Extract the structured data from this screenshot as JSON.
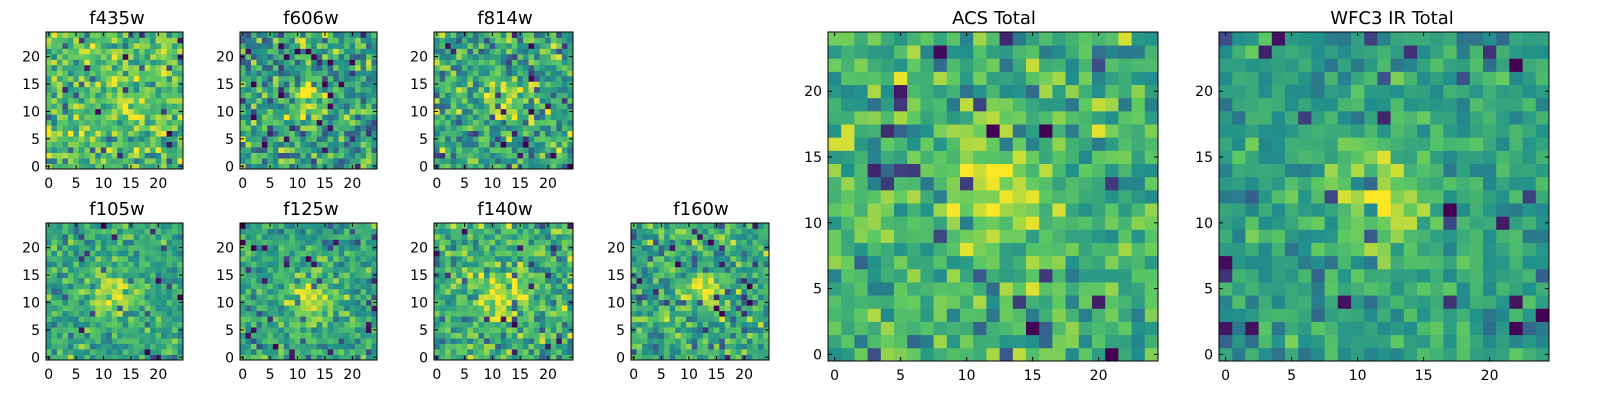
{
  "figure": {
    "colormap": "viridis",
    "colormap_stops": [
      "#440154",
      "#3b528b",
      "#21918c",
      "#5ec962",
      "#fde725"
    ]
  },
  "chart_data": [
    {
      "type": "heatmap",
      "title": "f435w",
      "grid_size": 25,
      "xlim": [
        -0.5,
        24.5
      ],
      "ylim": [
        -0.5,
        24.5
      ],
      "xticks": [
        0,
        5,
        10,
        15,
        20
      ],
      "yticks": [
        0,
        5,
        10,
        15,
        20
      ],
      "source_center": [
        12,
        12
      ],
      "source_peak": 0.05,
      "source_width": 3.0,
      "noise": 0.2,
      "background": 0.72,
      "seed": 435
    },
    {
      "type": "heatmap",
      "title": "f606w",
      "grid_size": 25,
      "xlim": [
        -0.5,
        24.5
      ],
      "ylim": [
        -0.5,
        24.5
      ],
      "xticks": [
        0,
        5,
        10,
        15,
        20
      ],
      "yticks": [
        0,
        5,
        10,
        15,
        20
      ],
      "source_center": [
        12,
        12
      ],
      "source_peak": 0.35,
      "source_width": 2.0,
      "noise": 0.24,
      "background": 0.58,
      "seed": 606
    },
    {
      "type": "heatmap",
      "title": "f814w",
      "grid_size": 25,
      "xlim": [
        -0.5,
        24.5
      ],
      "ylim": [
        -0.5,
        24.5
      ],
      "xticks": [
        0,
        5,
        10,
        15,
        20
      ],
      "yticks": [
        0,
        5,
        10,
        15,
        20
      ],
      "source_center": [
        12,
        12
      ],
      "source_peak": 0.3,
      "source_width": 2.2,
      "noise": 0.24,
      "background": 0.6,
      "seed": 814
    },
    {
      "type": "heatmap",
      "title": "f105w",
      "grid_size": 25,
      "xlim": [
        -0.5,
        24.5
      ],
      "ylim": [
        -0.5,
        24.5
      ],
      "xticks": [
        0,
        5,
        10,
        15,
        20
      ],
      "yticks": [
        0,
        5,
        10,
        15,
        20
      ],
      "source_center": [
        12,
        11
      ],
      "source_peak": 0.38,
      "source_width": 2.5,
      "noise": 0.16,
      "background": 0.6,
      "seed": 105
    },
    {
      "type": "heatmap",
      "title": "f125w",
      "grid_size": 25,
      "xlim": [
        -0.5,
        24.5
      ],
      "ylim": [
        -0.5,
        24.5
      ],
      "xticks": [
        0,
        5,
        10,
        15,
        20
      ],
      "yticks": [
        0,
        5,
        10,
        15,
        20
      ],
      "source_center": [
        12,
        11
      ],
      "source_peak": 0.36,
      "source_width": 2.6,
      "noise": 0.16,
      "background": 0.6,
      "seed": 125
    },
    {
      "type": "heatmap",
      "title": "f140w",
      "grid_size": 25,
      "xlim": [
        -0.5,
        24.5
      ],
      "ylim": [
        -0.5,
        24.5
      ],
      "xticks": [
        0,
        5,
        10,
        15,
        20
      ],
      "yticks": [
        0,
        5,
        10,
        15,
        20
      ],
      "source_center": [
        12,
        11
      ],
      "source_peak": 0.3,
      "source_width": 3.0,
      "noise": 0.2,
      "background": 0.64,
      "seed": 140
    },
    {
      "type": "heatmap",
      "title": "f160w",
      "grid_size": 25,
      "xlim": [
        -0.5,
        24.5
      ],
      "ylim": [
        -0.5,
        24.5
      ],
      "xticks": [
        0,
        5,
        10,
        15,
        20
      ],
      "yticks": [
        0,
        5,
        10,
        15,
        20
      ],
      "source_center": [
        13,
        12
      ],
      "source_peak": 0.36,
      "source_width": 2.2,
      "noise": 0.2,
      "background": 0.6,
      "seed": 160
    },
    {
      "type": "heatmap",
      "title": "ACS Total",
      "grid_size": 25,
      "xlim": [
        -0.5,
        24.5
      ],
      "ylim": [
        -0.5,
        24.5
      ],
      "xticks": [
        0,
        5,
        10,
        15,
        20
      ],
      "yticks": [
        0,
        5,
        10,
        15,
        20
      ],
      "source_center": [
        12,
        12
      ],
      "source_peak": 0.32,
      "source_width": 2.4,
      "noise": 0.18,
      "background": 0.64,
      "seed": 700
    },
    {
      "type": "heatmap",
      "title": "WFC3 IR Total",
      "grid_size": 25,
      "xlim": [
        -0.5,
        24.5
      ],
      "ylim": [
        -0.5,
        24.5
      ],
      "xticks": [
        0,
        5,
        10,
        15,
        20
      ],
      "yticks": [
        0,
        5,
        10,
        15,
        20
      ],
      "source_center": [
        12,
        12
      ],
      "source_peak": 0.4,
      "source_width": 2.6,
      "noise": 0.14,
      "background": 0.56,
      "seed": 900
    }
  ]
}
